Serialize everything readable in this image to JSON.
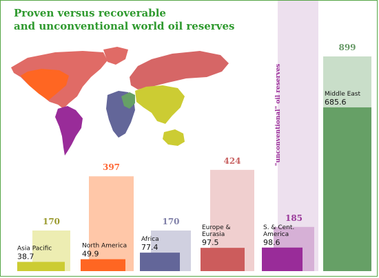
{
  "title_line1": "Proven  versus recoverable",
  "title_line2": "and unconventional world oil reserves",
  "unconventional_label": "\"unconventional\" oil reserves",
  "chart_data": {
    "type": "bar",
    "categories": [
      "Asia Pacific",
      "North America",
      "Africa",
      "Europe & Eurasia",
      "S. & Cent. America",
      "Middle East"
    ],
    "category_label_lines": [
      [
        "Asia Pacific"
      ],
      [
        "North America"
      ],
      [
        "Africa"
      ],
      [
        "Europe &",
        "Eurasia"
      ],
      [
        "S. & Cent.",
        "America"
      ],
      [
        "Middle East"
      ]
    ],
    "series": [
      {
        "role": "proven",
        "values": [
          38.7,
          49.9,
          77.4,
          97.5,
          98.6,
          685.6
        ],
        "labels": [
          "38.7",
          "49.9",
          "77.4",
          "97.5",
          "98.6",
          "685.6"
        ]
      },
      {
        "role": "recoverable",
        "values": [
          170,
          397,
          170,
          424,
          185,
          899
        ],
        "labels": [
          "170",
          "397",
          "170",
          "424",
          "185",
          "899"
        ]
      }
    ],
    "colors": {
      "proven": [
        "#cccc33",
        "#ff6622",
        "#636699",
        "#cc5c5c",
        "#992c99",
        "#66a066"
      ],
      "recoverable": [
        "#ededb2",
        "#ffc7a8",
        "#d0d0e0",
        "#f0cfcf",
        "#d6b0d6",
        "#c9dec9"
      ],
      "recoverable_label": [
        "#9a9a2e",
        "#ff6633",
        "#8080a8",
        "#c96464",
        "#9a3a9a",
        "#669966"
      ]
    },
    "unconventional_band_color": "#ede0ee",
    "ylim": [
      0,
      899
    ],
    "xlabel": "",
    "ylabel": ""
  }
}
